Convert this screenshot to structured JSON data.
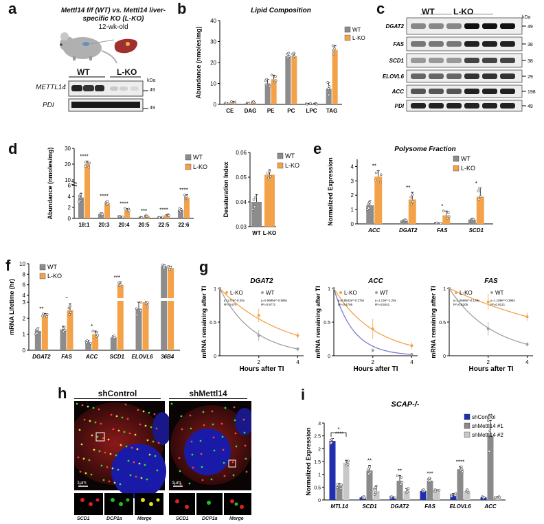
{
  "panel_a": {
    "letter": "a",
    "title_line1": "Mettl14 f/f (WT) vs. Mettl14 liver-",
    "title_line2": "specific KO (L-KO)",
    "age": "12-wk-old",
    "groups": [
      "WT",
      "L-KO"
    ],
    "kda_label": "kDa",
    "rows": [
      {
        "name": "METTL14",
        "kda": "49"
      },
      {
        "name": "PDI",
        "kda": "49"
      }
    ]
  },
  "panel_b": {
    "letter": "b"
  },
  "panel_c": {
    "letter": "c",
    "groups": [
      "WT",
      "L-KO"
    ],
    "kda_label": "kDa",
    "rows": [
      {
        "name": "DGAT2",
        "kda": "49"
      },
      {
        "name": "FAS",
        "kda": "38"
      },
      {
        "name": "SCD1",
        "kda": "38"
      },
      {
        "name": "ELOVL6",
        "kda": "29"
      },
      {
        "name": "ACC",
        "kda": "198"
      },
      {
        "name": "PDI",
        "kda": "49"
      }
    ]
  },
  "panel_d": {
    "letter": "d"
  },
  "panel_e": {
    "letter": "e"
  },
  "panel_f": {
    "letter": "f"
  },
  "panel_g": {
    "letter": "g",
    "eq": {
      "DGAT2": {
        "lko_eq": "y=1.0°e^-0.20x",
        "lko_r2": "R²=0.974",
        "wt_eq": "y=0.9985e^-0.585x",
        "wt_r2": "R²=0.9771"
      },
      "ACC": {
        "lko_eq": "y=0.9542e^-0.275x",
        "lko_r2": "R²=0.4795",
        "wt_eq": "y=1.13e^-1.20x",
        "wt_r2": "R²=0.9241"
      },
      "FAS": {
        "lko_eq": "y=1.0666e^-0.139x",
        "lko_r2": "R²=0.8205",
        "wt_eq": "y=1.109e^-0.398x",
        "wt_r2": "R²=0.9121"
      }
    }
  },
  "panel_h": {
    "letter": "h",
    "left_title": "shControl",
    "right_title": "shMettl14",
    "scale": "1μm",
    "insets": [
      "SCD1",
      "DCP1a",
      "Merge"
    ]
  },
  "panel_i": {
    "letter": "i"
  },
  "colors": {
    "wt": "#8c8c8c",
    "lko": "#f4a24a",
    "sh_control": "#1f2fb0",
    "sh1": "#8a8a8a",
    "sh2": "#c8c8c8"
  },
  "chart_data": [
    {
      "id": "b",
      "type": "bar",
      "title": "Lipid Composition",
      "ylabel": "Abundance (nmoles/mg)",
      "categories": [
        "CE",
        "DAG",
        "PE",
        "PC",
        "LPC",
        "TAG"
      ],
      "ylim": [
        0,
        40
      ],
      "yticks": [
        0,
        10,
        20,
        30,
        40
      ],
      "series": [
        {
          "name": "WT",
          "values": [
            0.5,
            0.5,
            10,
            23,
            0.3,
            7.5
          ],
          "err": [
            0.3,
            0.3,
            2,
            1.5,
            0.2,
            3
          ]
        },
        {
          "name": "L-KO",
          "values": [
            1,
            1,
            12,
            23,
            0.3,
            26
          ],
          "err": [
            0.5,
            0.5,
            2,
            1.5,
            0.2,
            2
          ]
        }
      ],
      "annotations": [
        {
          "category": "TAG",
          "text": "****"
        }
      ]
    },
    {
      "id": "d1",
      "type": "bar",
      "ylabel": "Abundance (nmoles/mg)",
      "categories": [
        "18:1",
        "20:3",
        "20:4",
        "20:5",
        "22:5",
        "22:6"
      ],
      "yticks": [
        0,
        2,
        4,
        6,
        10,
        20,
        30
      ],
      "series": [
        {
          "name": "WT",
          "values": [
            3.8,
            0.8,
            0.3,
            0.15,
            0.2,
            1.5
          ],
          "err": [
            0.8,
            0.2,
            0.1,
            0.05,
            0.05,
            0.3
          ]
        },
        {
          "name": "L-KO",
          "values": [
            20,
            2.8,
            1.5,
            0.4,
            0.6,
            3.8
          ],
          "err": [
            2,
            0.4,
            0.3,
            0.1,
            0.1,
            0.5
          ]
        }
      ],
      "annotations": [
        "****",
        "****",
        "****",
        "***",
        "****",
        "****"
      ]
    },
    {
      "id": "d2",
      "type": "bar",
      "ylabel": "Desaturation Index",
      "categories": [
        "WT",
        "L-KO"
      ],
      "ylim": [
        0.03,
        0.06
      ],
      "yticks": [
        0.03,
        0.04,
        0.05,
        0.06
      ],
      "series": [
        {
          "name": "WT",
          "values": [
            0.04,
            null
          ],
          "err": [
            0.003,
            null
          ]
        },
        {
          "name": "L-KO",
          "values": [
            null,
            0.051
          ],
          "err": [
            null,
            0.002
          ]
        }
      ],
      "annotations": [
        "***"
      ]
    },
    {
      "id": "e",
      "type": "bar",
      "title": "Polysome Fraction",
      "ylabel": "Normalized Expression",
      "categories": [
        "ACC",
        "DGAT2",
        "FAS",
        "SCD1"
      ],
      "ylim": [
        0,
        4.5
      ],
      "yticks": [
        0,
        1,
        2,
        3,
        4
      ],
      "series": [
        {
          "name": "WT",
          "values": [
            1.3,
            0.25,
            0.05,
            0.3
          ],
          "err": [
            0.3,
            0.05,
            0.02,
            0.05
          ]
        },
        {
          "name": "L-KO",
          "values": [
            3.3,
            1.7,
            0.6,
            1.9
          ],
          "err": [
            0.4,
            0.5,
            0.3,
            0.6
          ]
        }
      ],
      "annotations": [
        "**",
        "**",
        "*",
        "*"
      ]
    },
    {
      "id": "f",
      "type": "bar",
      "ylabel": "mRNA Lifetime (hr)",
      "categories": [
        "DGAT2",
        "FAS",
        "ACC",
        "SCD1",
        "ELOVL6",
        "36B4"
      ],
      "yticks": [
        0,
        1,
        2,
        3,
        4,
        6,
        8,
        10
      ],
      "series": [
        {
          "name": "WT",
          "values": [
            1.2,
            1.3,
            0.5,
            0.8,
            2.6,
            9.5
          ],
          "err": [
            0.2,
            0.2,
            0.1,
            0.1,
            0.4,
            0.3
          ]
        },
        {
          "name": "L-KO",
          "values": [
            2.2,
            2.5,
            1.0,
            6.0,
            3.0,
            9.2
          ],
          "err": [
            0.1,
            0.4,
            0.2,
            0.5,
            0.3,
            0.3
          ]
        }
      ],
      "annotations": [
        "**",
        "*",
        "*",
        "***",
        "",
        ""
      ]
    },
    {
      "id": "g1",
      "type": "line",
      "title": "DGAT2",
      "xlabel": "Hours after TI",
      "ylabel": "mRNA remaining after TI",
      "x": [
        0,
        2,
        4
      ],
      "xticks": [
        2,
        4
      ],
      "yticks": [
        0,
        0.5,
        1
      ],
      "ylim": [
        0,
        1
      ],
      "series": [
        {
          "name": "L-KO",
          "values": [
            1,
            0.6,
            0.3
          ],
          "err": [
            0,
            0.1,
            0.05
          ]
        },
        {
          "name": "WT",
          "values": [
            1,
            0.3,
            0.1
          ],
          "err": [
            0,
            0.08,
            0.03
          ]
        }
      ]
    },
    {
      "id": "g2",
      "type": "line",
      "title": "ACC",
      "xlabel": "Hours after TI",
      "ylabel": "mRNA remaining after TI",
      "x": [
        0,
        2,
        4
      ],
      "xticks": [
        2,
        4
      ],
      "yticks": [
        0,
        0.5,
        1
      ],
      "ylim": [
        0,
        1
      ],
      "series": [
        {
          "name": "L-KO",
          "values": [
            1,
            0.4,
            0.15
          ],
          "err": [
            0,
            0.15,
            0.05
          ]
        },
        {
          "name": "WT",
          "values": [
            1,
            0.08,
            0.02
          ],
          "err": [
            0,
            0.03,
            0.01
          ]
        }
      ]
    },
    {
      "id": "g3",
      "type": "line",
      "title": "FAS",
      "xlabel": "Hours after TI",
      "ylabel": "mRNA remaining after TI",
      "x": [
        0,
        2,
        4
      ],
      "xticks": [
        2,
        4
      ],
      "yticks": [
        0,
        0.5,
        1
      ],
      "ylim": [
        0,
        1
      ],
      "series": [
        {
          "name": "L-KO",
          "values": [
            1,
            0.8,
            0.58
          ],
          "err": [
            0,
            0.12,
            0.06
          ]
        },
        {
          "name": "WT",
          "values": [
            1,
            0.4,
            0.17
          ],
          "err": [
            0,
            0.1,
            0.03
          ]
        }
      ]
    },
    {
      "id": "i",
      "type": "bar",
      "title": "SCAP-/-",
      "ylabel": "Normalized Expression",
      "categories": [
        "MTL14",
        "SCD1",
        "DGAT2",
        "FAS",
        "ELOVL6",
        "ACC"
      ],
      "ylim": [
        0,
        3
      ],
      "yticks": [
        0,
        0.5,
        1,
        1.5,
        2,
        2.5,
        3
      ],
      "series": [
        {
          "name": "shControl",
          "values": [
            2.3,
            0.1,
            0.1,
            0.35,
            0.2,
            0.1
          ],
          "err": [
            0.1,
            0.05,
            0.03,
            0.05,
            0.05,
            0.03
          ]
        },
        {
          "name": "shMettl14 #1",
          "values": [
            0.55,
            1.15,
            0.75,
            0.75,
            1.2,
            2.5
          ],
          "err": [
            0.1,
            0.2,
            0.2,
            0.1,
            0.1,
            0.6
          ]
        },
        {
          "name": "shMettl14 #2",
          "values": [
            1.45,
            0.35,
            0.35,
            0.35,
            0.35,
            0.1
          ],
          "err": [
            0.1,
            0.2,
            0.1,
            0.05,
            0.05,
            0.03
          ]
        }
      ],
      "annotations": [
        "****",
        "**",
        "**",
        "***",
        "****",
        "**"
      ],
      "bracket_text": "*"
    }
  ]
}
